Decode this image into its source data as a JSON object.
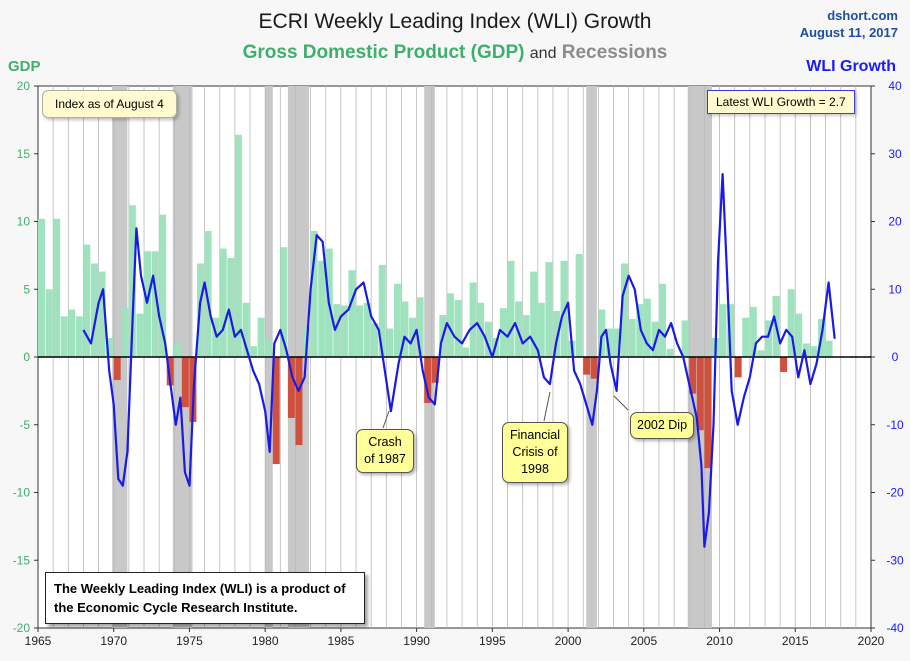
{
  "header": {
    "title": "ECRI Weekly Leading Index (WLI) Growth",
    "subtitle_gdp": "Gross Domestic Product (GDP)",
    "subtitle_and": "and",
    "subtitle_recessions": "Recessions",
    "source": "dshort.com",
    "date": "August 11, 2017"
  },
  "annotations": {
    "index_note": "Index as of August 4",
    "latest": "Latest WLI Growth = 2.7",
    "footnote": "The Weekly Leading Index (WLI) is a product of the Economic Cycle Research Institute.",
    "crash_1987": "Crash of 1987",
    "crisis_1998": "Financial Crisis of 1998",
    "dip_2002": "2002 Dip"
  },
  "colors": {
    "gdp_positive": "#9ee3bd",
    "gdp_negative": "#d0503e",
    "recession": "#c8c8c8",
    "wli_line": "#1a1ae6",
    "gdp_axis": "#3fae6e",
    "wli_axis": "#1a1aff"
  },
  "chart_data": {
    "type": "bar",
    "title": "ECRI Weekly Leading Index (WLI) Growth",
    "subtitle": "Gross Domestic Product (GDP) and Recessions",
    "xlim": [
      1965,
      2020
    ],
    "x_ticks": [
      "1965",
      "1970",
      "1975",
      "1980",
      "1985",
      "1990",
      "1995",
      "2000",
      "2005",
      "2010",
      "2015",
      "2020"
    ],
    "y_left": {
      "label": "GDP",
      "range": [
        -20,
        20
      ],
      "ticks": [
        "20",
        "15",
        "10",
        "5",
        "0",
        "-5",
        "-10",
        "-15",
        "-20"
      ]
    },
    "y_right": {
      "label": "WLI Growth",
      "range": [
        -40,
        40
      ],
      "ticks": [
        "40",
        "30",
        "20",
        "10",
        "0",
        "-10",
        "-20",
        "-30",
        "-40"
      ]
    },
    "grid": "vertical",
    "recessions": [
      [
        1969.9,
        1970.9
      ],
      [
        1973.9,
        1975.2
      ],
      [
        1980.0,
        1980.5
      ],
      [
        1981.5,
        1982.9
      ],
      [
        1990.5,
        1991.2
      ],
      [
        2001.2,
        2001.9
      ],
      [
        2007.9,
        2009.5
      ]
    ],
    "series": [
      {
        "name": "GDP",
        "axis": "left",
        "kind": "bar",
        "x": [
          1965.0,
          1965.5,
          1966.0,
          1966.5,
          1967.0,
          1967.5,
          1968.0,
          1968.5,
          1969.0,
          1969.5,
          1970.0,
          1970.5,
          1971.0,
          1971.5,
          1972.0,
          1972.5,
          1973.0,
          1973.5,
          1974.0,
          1974.5,
          1975.0,
          1975.5,
          1976.0,
          1976.5,
          1977.0,
          1977.5,
          1978.0,
          1978.5,
          1979.0,
          1979.5,
          1980.0,
          1980.5,
          1981.0,
          1981.5,
          1982.0,
          1982.5,
          1983.0,
          1983.5,
          1984.0,
          1984.5,
          1985.0,
          1985.5,
          1986.0,
          1986.5,
          1987.0,
          1987.5,
          1988.0,
          1988.5,
          1989.0,
          1989.5,
          1990.0,
          1990.5,
          1991.0,
          1991.5,
          1992.0,
          1992.5,
          1993.0,
          1993.5,
          1994.0,
          1994.5,
          1995.0,
          1995.5,
          1996.0,
          1996.5,
          1997.0,
          1997.5,
          1998.0,
          1998.5,
          1999.0,
          1999.5,
          2000.0,
          2000.5,
          2001.0,
          2001.5,
          2002.0,
          2002.5,
          2003.0,
          2003.5,
          2004.0,
          2004.5,
          2005.0,
          2005.5,
          2006.0,
          2006.5,
          2007.0,
          2007.5,
          2008.0,
          2008.5,
          2009.0,
          2009.5,
          2010.0,
          2010.5,
          2011.0,
          2011.5,
          2012.0,
          2012.5,
          2013.0,
          2013.5,
          2014.0,
          2014.5,
          2015.0,
          2015.5,
          2016.0,
          2016.5,
          2017.0
        ],
        "values": [
          10.2,
          5.0,
          10.2,
          3.0,
          3.5,
          3.0,
          8.3,
          6.9,
          6.3,
          1.4,
          -1.7,
          3.6,
          11.2,
          3.2,
          7.8,
          7.8,
          10.5,
          -2.1,
          1.0,
          -3.7,
          -4.8,
          6.9,
          9.3,
          2.9,
          8.0,
          7.3,
          16.4,
          4.0,
          0.8,
          2.9,
          1.3,
          -7.9,
          8.1,
          -4.5,
          -6.5,
          2.2,
          9.3,
          7.1,
          8.0,
          3.9,
          3.8,
          6.4,
          3.8,
          4.0,
          2.5,
          6.8,
          2.1,
          5.4,
          4.1,
          2.9,
          4.4,
          -3.4,
          -1.9,
          3.1,
          4.7,
          4.2,
          0.7,
          5.5,
          4.0,
          2.6,
          1.4,
          3.6,
          7.1,
          4.1,
          3.1,
          6.3,
          4.0,
          7.0,
          3.4,
          7.1,
          1.2,
          7.6,
          -1.3,
          -1.6,
          3.5,
          2.1,
          2.1,
          6.9,
          2.8,
          3.9,
          4.3,
          2.6,
          5.4,
          0.6,
          0.1,
          2.7,
          -2.7,
          -5.4,
          -8.2,
          1.4,
          3.9,
          3.9,
          -1.5,
          2.9,
          3.7,
          0.5,
          2.7,
          4.5,
          -1.1,
          5.0,
          3.2,
          1.0,
          0.8,
          2.8,
          1.2
        ]
      },
      {
        "name": "WLI Growth",
        "axis": "right",
        "kind": "line",
        "x": [
          1968.0,
          1968.5,
          1969.0,
          1969.3,
          1969.7,
          1970.0,
          1970.3,
          1970.6,
          1970.9,
          1971.2,
          1971.5,
          1971.8,
          1972.2,
          1972.6,
          1973.0,
          1973.4,
          1973.8,
          1974.1,
          1974.4,
          1974.7,
          1975.0,
          1975.3,
          1975.7,
          1976.0,
          1976.4,
          1976.8,
          1977.2,
          1977.6,
          1978.0,
          1978.4,
          1978.8,
          1979.2,
          1979.6,
          1980.0,
          1980.3,
          1980.6,
          1981.0,
          1981.4,
          1981.8,
          1982.2,
          1982.6,
          1983.0,
          1983.4,
          1983.8,
          1984.2,
          1984.6,
          1985.0,
          1985.5,
          1986.0,
          1986.5,
          1987.0,
          1987.5,
          1987.9,
          1988.3,
          1988.8,
          1989.2,
          1989.6,
          1990.0,
          1990.4,
          1990.8,
          1991.2,
          1991.6,
          1992.0,
          1992.5,
          1993.0,
          1993.5,
          1994.0,
          1994.5,
          1995.0,
          1995.5,
          1996.0,
          1996.5,
          1997.0,
          1997.5,
          1998.0,
          1998.4,
          1998.8,
          1999.2,
          1999.6,
          2000.0,
          2000.4,
          2000.8,
          2001.2,
          2001.6,
          2001.9,
          2002.2,
          2002.5,
          2002.8,
          2003.2,
          2003.6,
          2004.0,
          2004.4,
          2004.8,
          2005.2,
          2005.6,
          2006.0,
          2006.4,
          2006.8,
          2007.2,
          2007.6,
          2007.9,
          2008.2,
          2008.5,
          2008.8,
          2009.0,
          2009.3,
          2009.6,
          2009.9,
          2010.2,
          2010.5,
          2010.8,
          2011.2,
          2011.6,
          2012.0,
          2012.4,
          2012.8,
          2013.2,
          2013.6,
          2014.0,
          2014.4,
          2014.8,
          2015.2,
          2015.6,
          2016.0,
          2016.4,
          2016.8,
          2017.2,
          2017.6
        ],
        "values": [
          4.0,
          2.0,
          8.0,
          10.0,
          -2.0,
          -7.0,
          -18.0,
          -19.0,
          -14.0,
          3.0,
          19.0,
          12.0,
          8.0,
          12.0,
          6.0,
          2.0,
          -5.0,
          -10.0,
          -6.0,
          -17.0,
          -19.0,
          -4.0,
          8.0,
          11.0,
          6.0,
          3.0,
          4.0,
          7.0,
          3.0,
          4.0,
          1.0,
          -2.0,
          -4.0,
          -8.0,
          -14.0,
          2.0,
          4.0,
          1.0,
          -3.0,
          -5.0,
          -3.0,
          10.0,
          18.0,
          17.0,
          8.0,
          4.0,
          6.0,
          7.0,
          10.0,
          11.0,
          6.0,
          4.0,
          -2.0,
          -8.0,
          -1.0,
          3.0,
          2.0,
          4.0,
          -2.0,
          -6.0,
          -7.0,
          2.0,
          5.0,
          3.0,
          2.0,
          4.0,
          5.0,
          3.0,
          0.0,
          4.0,
          3.0,
          5.0,
          2.0,
          3.0,
          1.0,
          -3.0,
          -4.0,
          2.0,
          6.0,
          8.0,
          -2.0,
          -4.0,
          -7.0,
          -10.0,
          -5.0,
          3.0,
          4.0,
          -1.0,
          -5.0,
          9.0,
          12.0,
          10.0,
          4.0,
          2.0,
          1.0,
          4.0,
          3.0,
          5.0,
          2.0,
          0.0,
          -3.0,
          -6.0,
          -9.0,
          -16.0,
          -28.0,
          -23.0,
          -10.0,
          14.0,
          27.0,
          12.0,
          -5.0,
          -10.0,
          -6.0,
          -3.0,
          2.0,
          3.0,
          3.0,
          6.0,
          2.0,
          4.0,
          3.0,
          -3.0,
          1.0,
          -4.0,
          -1.0,
          4.0,
          11.0,
          2.7
        ]
      }
    ]
  }
}
